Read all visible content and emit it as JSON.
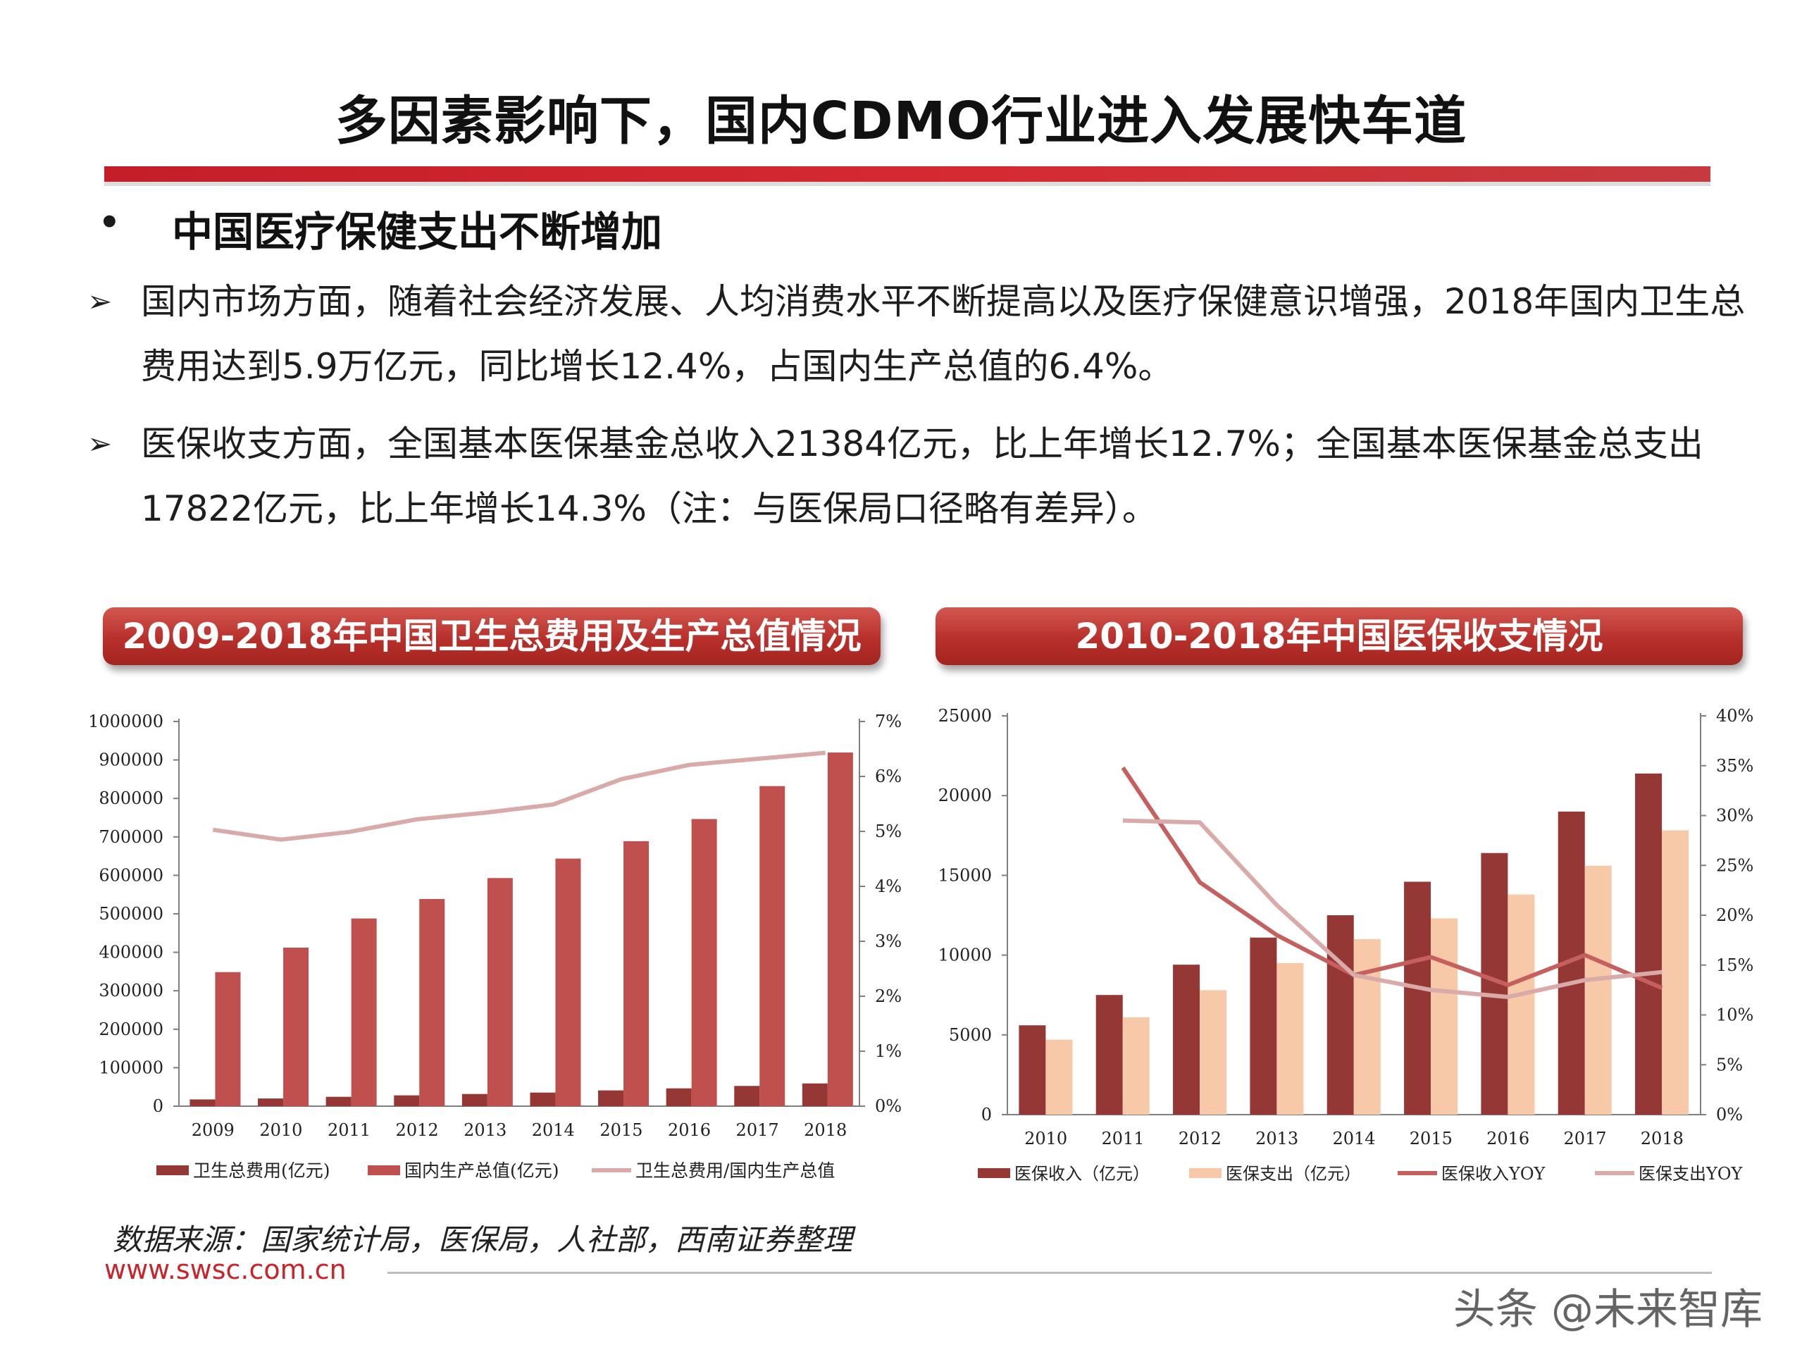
{
  "title": "多因素影响下，国内CDMO行业进入发展快车道",
  "subheading": {
    "bullet": "•",
    "text": "中国医疗保健支出不断增加"
  },
  "paragraphs": [
    {
      "marker": "➢",
      "text": "国内市场方面，随着社会经济发展、人均消费水平不断提高以及医疗保健意识增强，2018年国内卫生总费用达到5.9万亿元，同比增长12.4%，占国内生产总值的6.4%。"
    },
    {
      "marker": "➢",
      "text": "医保收支方面，全国基本医保基金总收入21384亿元，比上年增长12.7%；全国基本医保基金总支出17822亿元，比上年增长14.3%（注：与医保局口径略有差异）。"
    }
  ],
  "colors": {
    "accent": "#c41e2a",
    "bar_dark": "#953735",
    "bar_mid": "#c0504d",
    "bar_light": "#f8c9a9",
    "line_mid": "#c6605e",
    "line_light": "#d9aaa8"
  },
  "chart_data": [
    {
      "type": "bar",
      "title": "2009-2018年中国卫生总费用及生产总值情况",
      "categories": [
        "2009",
        "2010",
        "2011",
        "2012",
        "2013",
        "2014",
        "2015",
        "2016",
        "2017",
        "2018"
      ],
      "y_ticks": [
        "0",
        "100000",
        "200000",
        "300000",
        "400000",
        "500000",
        "600000",
        "700000",
        "800000",
        "900000",
        "1000000"
      ],
      "y2_ticks": [
        "0%",
        "1%",
        "2%",
        "3%",
        "4%",
        "5%",
        "6%",
        "7%"
      ],
      "ylim": [
        0,
        1000000
      ],
      "y2lim": [
        0,
        0.07
      ],
      "series": [
        {
          "name": "卫生总费用(亿元)",
          "kind": "bar",
          "values": [
            17542,
            19980,
            24346,
            28119,
            31669,
            35312,
            40975,
            46345,
            52598,
            59122
          ]
        },
        {
          "name": "国内生产总值(亿元)",
          "kind": "bar",
          "values": [
            348518,
            412119,
            487940,
            538580,
            592963,
            643563,
            688858,
            746395,
            832036,
            919281
          ]
        },
        {
          "name": "卫生总费用/国内生产总值",
          "kind": "line",
          "axis": "right",
          "values": [
            0.0503,
            0.0485,
            0.0499,
            0.0522,
            0.0534,
            0.0549,
            0.0595,
            0.0621,
            0.0632,
            0.0643
          ]
        }
      ],
      "legend_position": "bottom"
    },
    {
      "type": "bar",
      "title": "2010-2018年中国医保收支情况",
      "categories": [
        "2010",
        "2011",
        "2012",
        "2013",
        "2014",
        "2015",
        "2016",
        "2017",
        "2018"
      ],
      "y_ticks": [
        "0",
        "5000",
        "10000",
        "15000",
        "20000",
        "25000"
      ],
      "y2_ticks": [
        "0%",
        "5%",
        "10%",
        "15%",
        "20%",
        "25%",
        "30%",
        "35%",
        "40%"
      ],
      "ylim": [
        0,
        25000
      ],
      "y2lim": [
        0,
        0.4
      ],
      "series": [
        {
          "name": "医保收入（亿元）",
          "kind": "bar",
          "values": [
            5600,
            7500,
            9400,
            11100,
            12500,
            14600,
            16400,
            19000,
            21384
          ]
        },
        {
          "name": "医保支出（亿元）",
          "kind": "bar",
          "values": [
            4700,
            6100,
            7800,
            9500,
            11000,
            12300,
            13800,
            15600,
            17822
          ]
        },
        {
          "name": "医保收入YOY",
          "kind": "line",
          "axis": "right",
          "values": [
            null,
            0.348,
            0.233,
            0.18,
            0.14,
            0.158,
            0.13,
            0.16,
            0.127
          ]
        },
        {
          "name": "医保支出YOY",
          "kind": "line",
          "axis": "right",
          "values": [
            null,
            0.295,
            0.293,
            0.21,
            0.14,
            0.125,
            0.118,
            0.135,
            0.143
          ]
        }
      ],
      "legend_position": "bottom"
    }
  ],
  "source": "数据来源：国家统计局，医保局，人社部，西南证券整理",
  "site": "www.swsc.com.cn",
  "watermark": "头条 @未来智库"
}
